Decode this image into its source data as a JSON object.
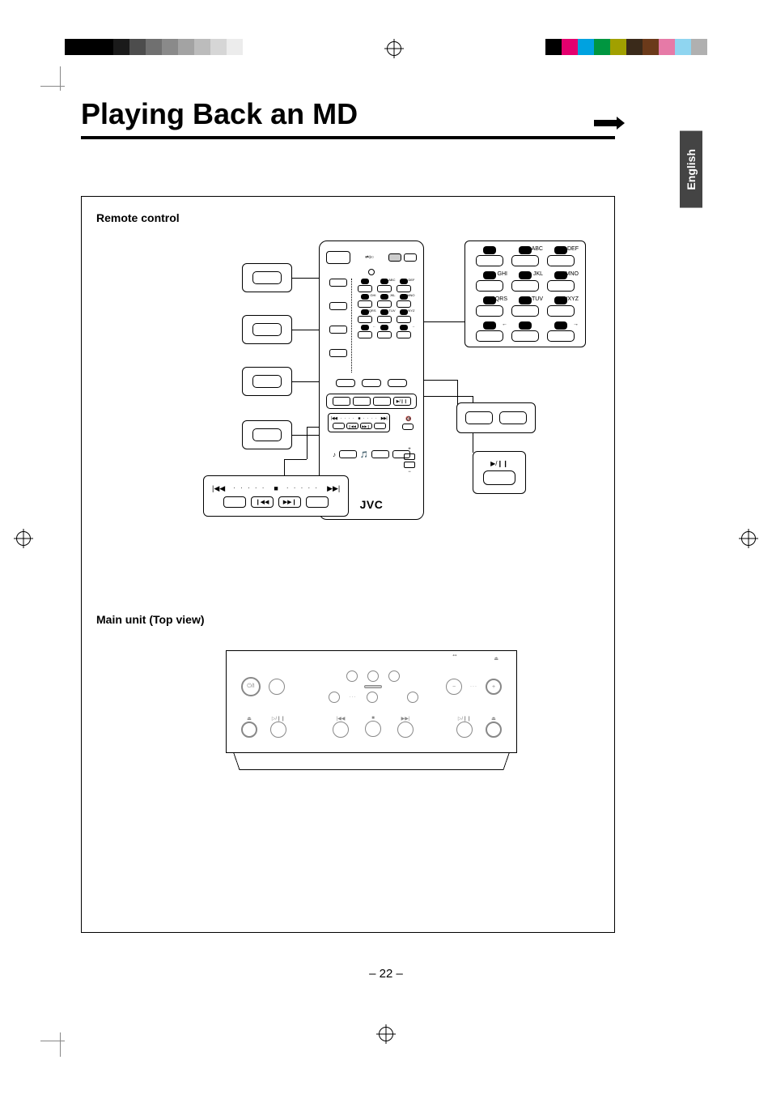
{
  "page": {
    "title": "Playing Back an MD",
    "number": "– 22 –",
    "language_tab": "English"
  },
  "sections": {
    "remote_label": "Remote control",
    "mainunit_label": "Main unit (Top view)"
  },
  "remote": {
    "brand": "JVC",
    "keypad": {
      "rows": [
        [
          {
            "label": ""
          },
          {
            "label": "ABC"
          },
          {
            "label": "DEF"
          }
        ],
        [
          {
            "label": "GHI"
          },
          {
            "label": "JKL"
          },
          {
            "label": "MNO"
          }
        ],
        [
          {
            "label": "PQRS"
          },
          {
            "label": "TUV"
          },
          {
            "label": "WXYZ"
          }
        ],
        [
          {
            "label": "←"
          },
          {
            "label": ""
          },
          {
            "label": "→"
          }
        ]
      ]
    },
    "play_icon": "▶/❙❙",
    "transport": {
      "prev": "|◀◀",
      "stop": "■",
      "next": "▶▶|",
      "rwd": "❙◀◀",
      "fwd": "▶▶❙"
    },
    "speaker_icon": "🔇"
  },
  "mainunit": {
    "power_label": "⏻/I",
    "eject_sym": "⏏",
    "play_sym": "▷/❙❙",
    "transport": {
      "prev": "|◀◀",
      "stop": "■",
      "next": "▶▶|"
    },
    "rec": "●",
    "headphone_sym": "♫"
  },
  "colorbar": {
    "gradient": [
      "#000",
      "#000",
      "#000",
      "#1a1a1a",
      "#4d4d4d",
      "#707070",
      "#8a8a8a",
      "#a3a3a3",
      "#bcbcbc",
      "#d6d6d6",
      "#ececec"
    ],
    "colors": [
      "#000",
      "#e4006e",
      "#00a2e0",
      "#009640",
      "#a1a000",
      "#3a2a1a",
      "#6b3a1a",
      "#e67aa7",
      "#8fd5f0",
      "#b0b0b0"
    ]
  }
}
